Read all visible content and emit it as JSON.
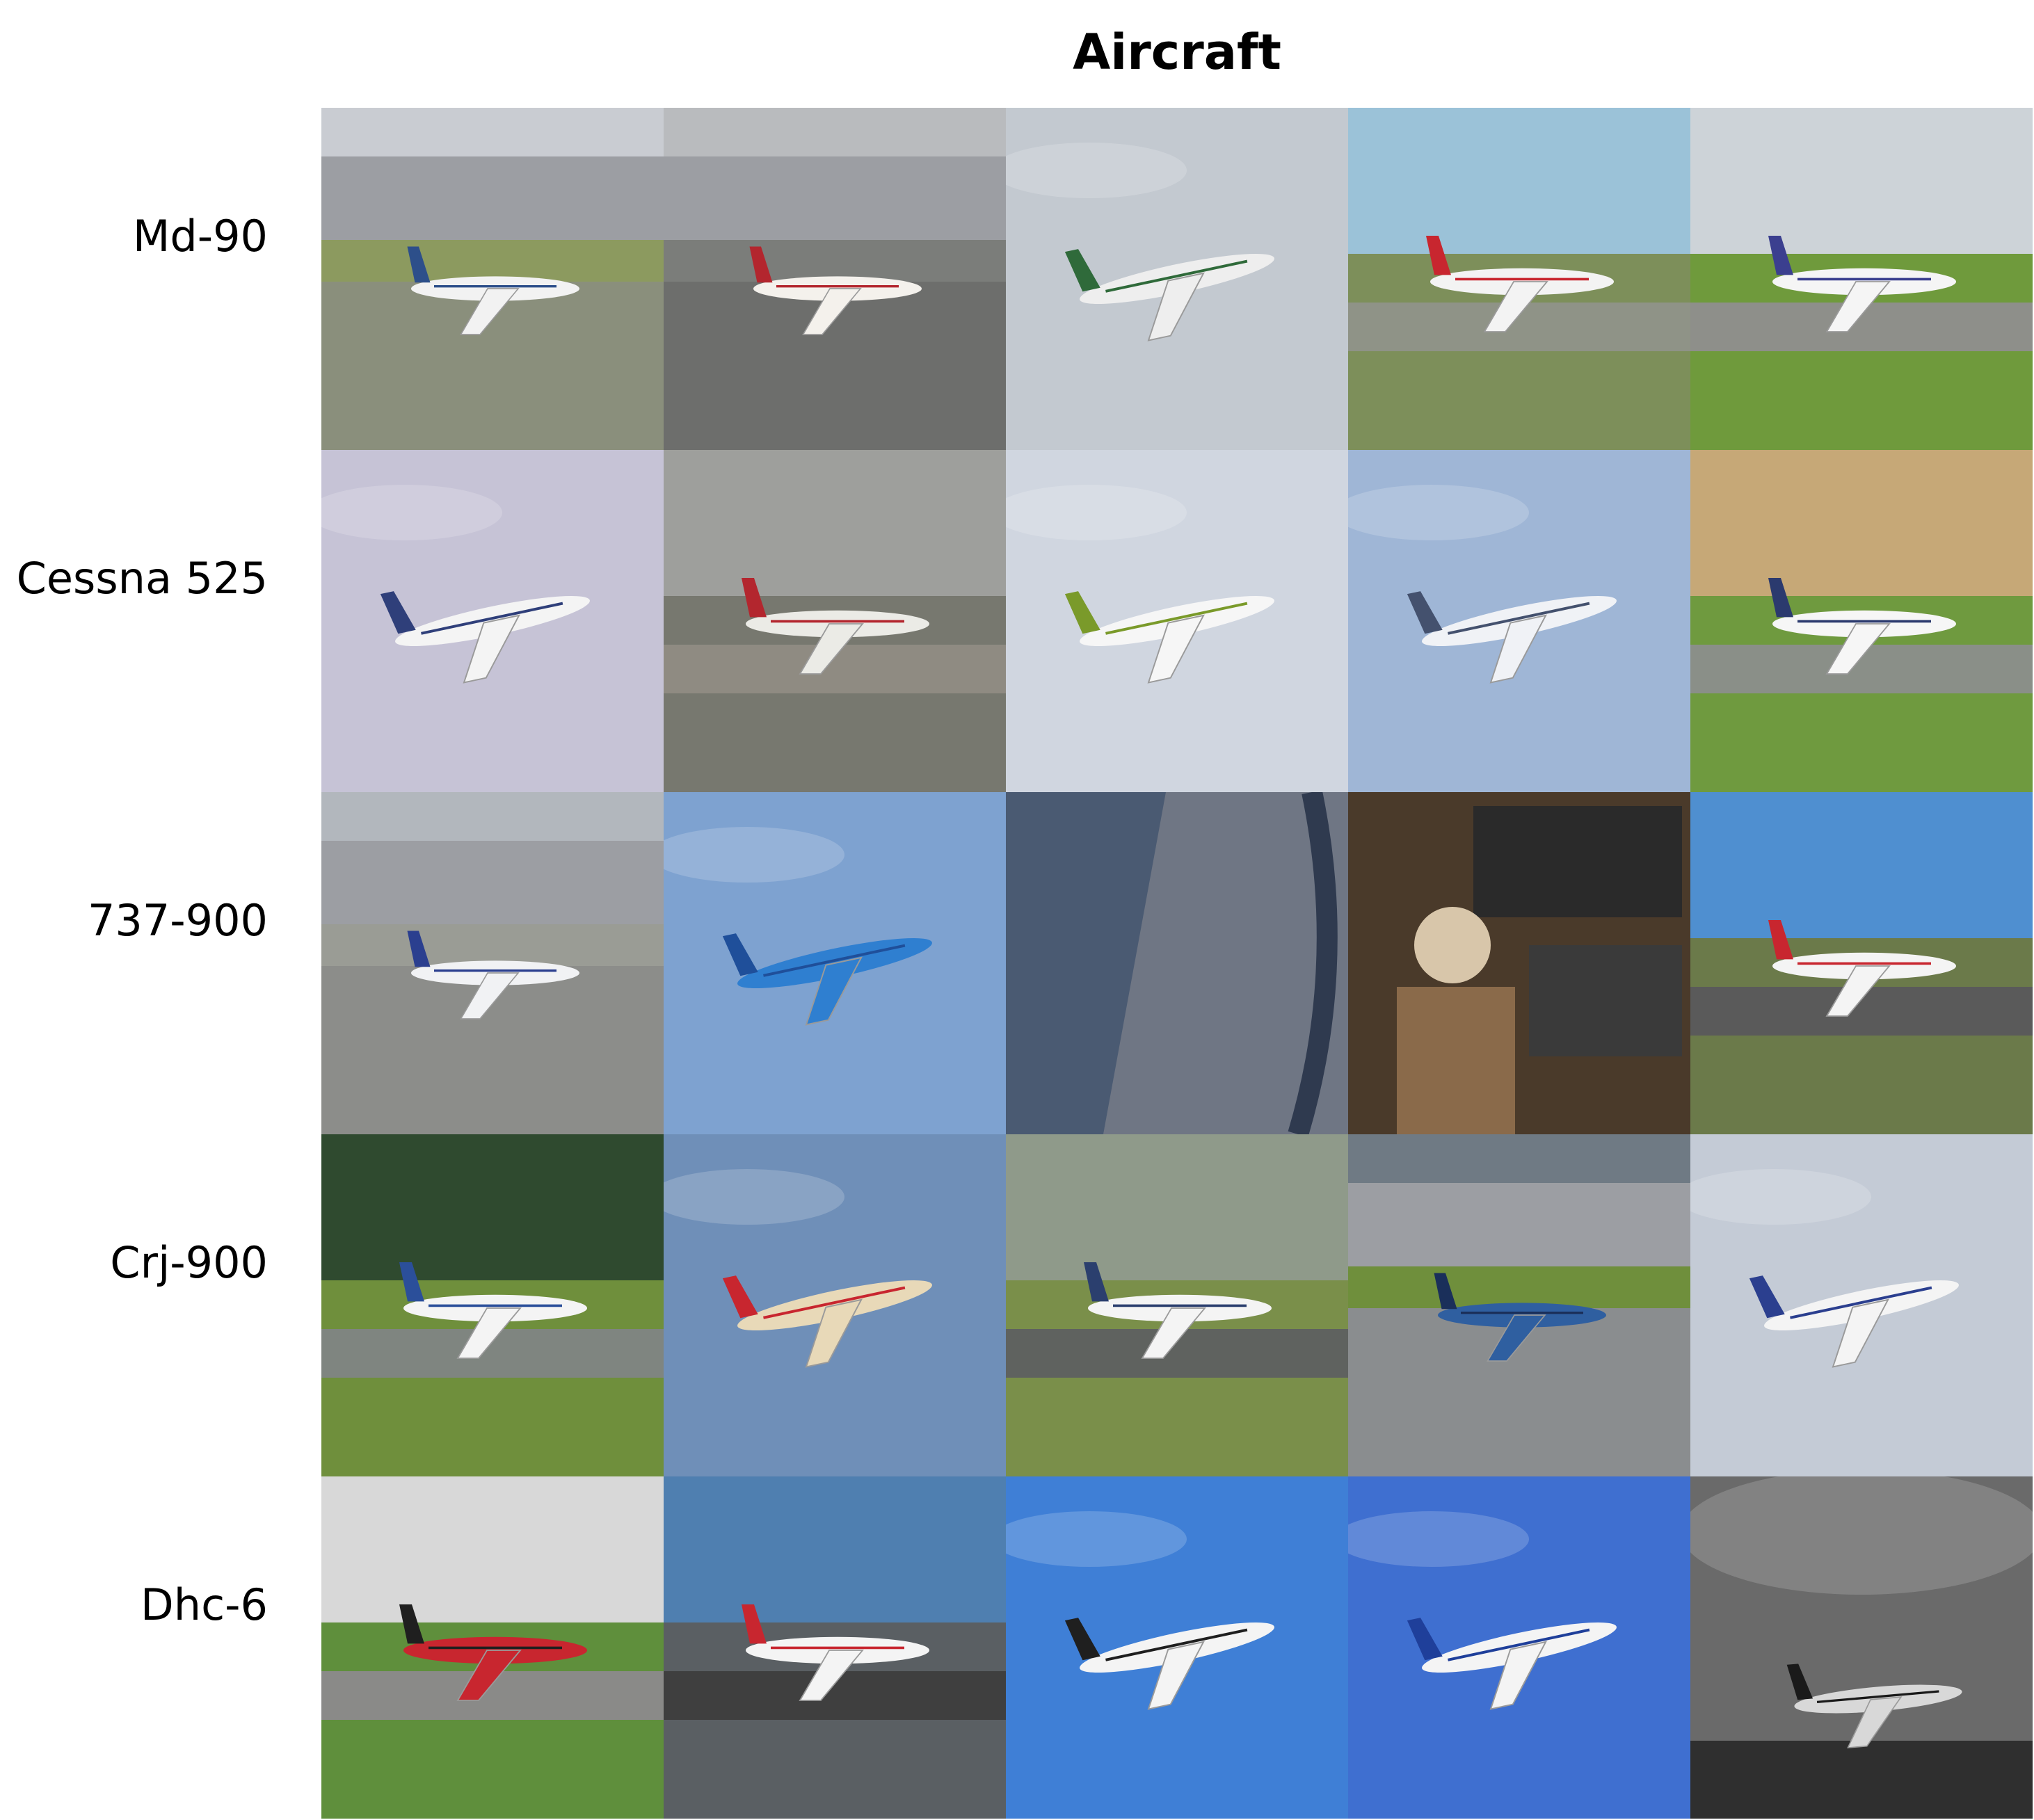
{
  "title": "Aircraft",
  "rows": [
    {
      "label": "Md-90",
      "images": [
        {
          "kind": "airport",
          "sky": "#c9ccd2",
          "ground": "#8a8f7c",
          "grass": "#8c9a5f",
          "body": "#f2f2f2",
          "accent": "#2d4f8a",
          "note": "airport-apron-city-background"
        },
        {
          "kind": "airport",
          "sky": "#b9bbbe",
          "ground": "#6d6e6c",
          "grass": "#7b7d7a",
          "body": "#f4f1ec",
          "accent": "#b3262e",
          "note": "airport-terminal-red-tail"
        },
        {
          "kind": "sky",
          "sky": "#c3c9d0",
          "ground": "#c3c9d0",
          "grass": "#c3c9d0",
          "body": "#eeeeee",
          "accent": "#2f6a3a",
          "note": "airliner-climbing-overcast"
        },
        {
          "kind": "runway",
          "sky": "#9bc2d8",
          "ground": "#8f9387",
          "grass": "#7d8f5a",
          "body": "#f3f3f3",
          "accent": "#c8262f",
          "note": "delta-airliner-taxiing"
        },
        {
          "kind": "runway",
          "sky": "#cdd3d8",
          "ground": "#8e8f8a",
          "grass": "#6f9a3c",
          "body": "#f5f5f5",
          "accent": "#3b3f8f",
          "note": "airliner-on-runway-grass"
        }
      ]
    },
    {
      "label": "Cessna 525",
      "images": [
        {
          "kind": "sky",
          "sky": "#c6c3d6",
          "ground": "#c6c3d6",
          "grass": "#c6c3d6",
          "body": "#f4f4f4",
          "accent": "#2f3f7a",
          "note": "bizjet-landing-lavender-sky"
        },
        {
          "kind": "runway",
          "sky": "#9e9f9c",
          "ground": "#8f8b82",
          "grass": "#77786f",
          "body": "#ebebe6",
          "accent": "#b3262e",
          "note": "bizjet-wet-tarmac"
        },
        {
          "kind": "sky",
          "sky": "#d0d6e0",
          "ground": "#d0d6e0",
          "grass": "#d0d6e0",
          "body": "#f6f6f6",
          "accent": "#7a9a2a",
          "note": "bizjet-flying-pale-sky"
        },
        {
          "kind": "sky",
          "sky": "#9fb6d6",
          "ground": "#9fb6d6",
          "grass": "#9fb6d6",
          "body": "#f0f2f6",
          "accent": "#44516e",
          "note": "bizjet-flying-blue-sky"
        },
        {
          "kind": "runway",
          "sky": "#c6a877",
          "ground": "#8a8f88",
          "grass": "#6f9a3f",
          "body": "#f6f6f6",
          "accent": "#2b3a6e",
          "note": "bizjet-field-trees"
        }
      ]
    },
    {
      "label": "737-900",
      "images": [
        {
          "kind": "airport",
          "sky": "#b2b7bd",
          "ground": "#8c8d8a",
          "grass": "#9a9c95",
          "body": "#f1f2f4",
          "accent": "#2b3f8f",
          "note": "united-airliner-hangar"
        },
        {
          "kind": "sky",
          "sky": "#7ea2d0",
          "ground": "#7ea2d0",
          "grass": "#7ea2d0",
          "body": "#2f7fd0",
          "accent": "#1f4f9a",
          "note": "klm-airliner-climbing-clouds"
        },
        {
          "kind": "window",
          "sky": "#4a5a72",
          "ground": "#6f7684",
          "grass": "#5b6270",
          "body": "#8b95a8",
          "accent": "#2f3a4f",
          "note": "wing-view-from-window"
        },
        {
          "kind": "cockpit",
          "sky": "#6b5a44",
          "ground": "#4a3a2a",
          "grass": "#8a6a4a",
          "body": "#d8c6aa",
          "accent": "#2a2a2a",
          "note": "pilot-in-cockpit"
        },
        {
          "kind": "runway",
          "sky": "#4f8fd0",
          "ground": "#5a5a5a",
          "grass": "#6b7a4a",
          "body": "#f4f4f4",
          "accent": "#c8262f",
          "note": "delta-airliner-runway-blue-sky"
        }
      ]
    },
    {
      "label": "Crj-900",
      "images": [
        {
          "kind": "runway",
          "sky": "#2f4a2f",
          "ground": "#7f8580",
          "grass": "#6f8f3c",
          "body": "#f4f4f4",
          "accent": "#2b4f9a",
          "note": "regional-jet-runway-forest"
        },
        {
          "kind": "sky",
          "sky": "#6f8fb8",
          "ground": "#6f8fb8",
          "grass": "#6f8fb8",
          "body": "#e8d9b8",
          "accent": "#c8262f",
          "note": "regional-jet-banking-blue-sky"
        },
        {
          "kind": "runway",
          "sky": "#8f9a8a",
          "ground": "#5f625f",
          "grass": "#7a8f4a",
          "body": "#f4f4f4",
          "accent": "#2b3f6e",
          "note": "regional-jet-taxiway-markings"
        },
        {
          "kind": "airport",
          "sky": "#6f7a84",
          "ground": "#8a8d8f",
          "grass": "#6f8f3c",
          "body": "#2f5fa0",
          "accent": "#1a2f5a",
          "note": "nordica-jet-apron"
        },
        {
          "kind": "sky",
          "sky": "#c4cbd6",
          "ground": "#c4cbd6",
          "grass": "#c4cbd6",
          "body": "#f4f4f4",
          "accent": "#2b3f8f",
          "note": "regional-jet-landing-grey-sky"
        }
      ]
    },
    {
      "label": "Dhc-6",
      "images": [
        {
          "kind": "runway",
          "sky": "#d8d8d8",
          "ground": "#8a8a88",
          "grass": "#5f8f3c",
          "body": "#c8262f",
          "accent": "#1f1f1f",
          "note": "red-twin-otter-grass"
        },
        {
          "kind": "runway",
          "sky": "#4f7fb0",
          "ground": "#3f3f3f",
          "grass": "#5a5f63",
          "body": "#f4f4f4",
          "accent": "#c8262f",
          "note": "twin-otter-tarmac-clouds"
        },
        {
          "kind": "sky",
          "sky": "#3f7fd6",
          "ground": "#3f7fd6",
          "grass": "#3f7fd6",
          "body": "#f4f4f4",
          "accent": "#1f1f1f",
          "note": "twin-otter-flying-blue-sky"
        },
        {
          "kind": "sky",
          "sky": "#3f6fd0",
          "ground": "#3f6fd0",
          "grass": "#3f6fd0",
          "body": "#f4f4f4",
          "accent": "#1f3f9a",
          "note": "twin-otter-overhead"
        },
        {
          "kind": "storm",
          "sky": "#6a6a6a",
          "ground": "#2f2f2f",
          "grass": "#4a4a4a",
          "body": "#d8d8d8",
          "accent": "#1a1a1a",
          "note": "twin-otter-stormy-sky-monochrome"
        }
      ]
    }
  ]
}
